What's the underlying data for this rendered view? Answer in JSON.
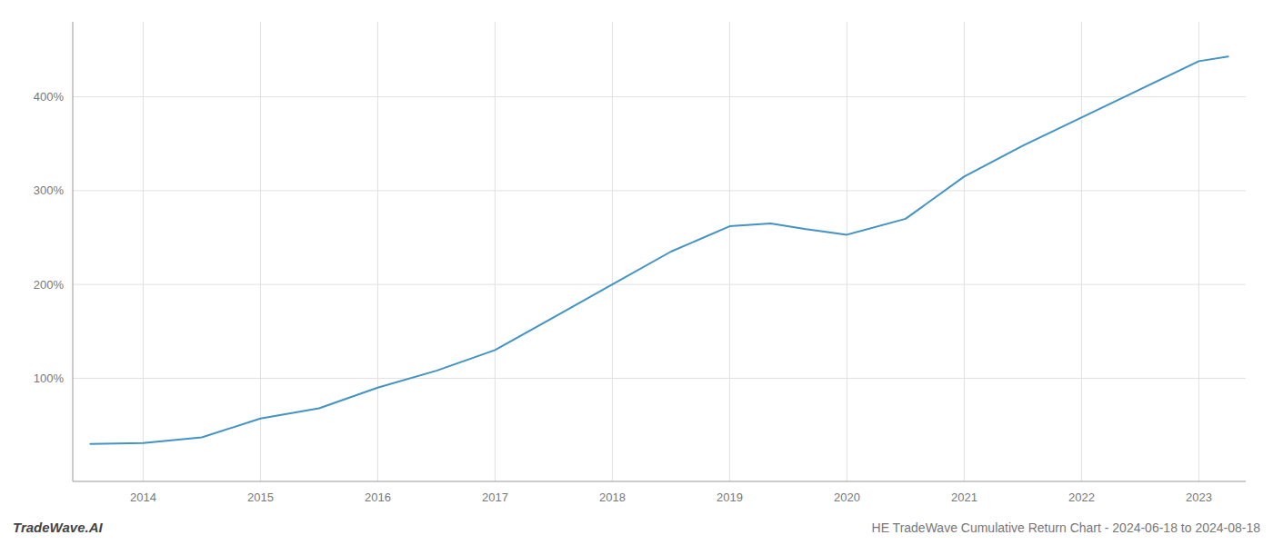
{
  "chart_data": {
    "type": "line",
    "title": "HE TradeWave Cumulative Return Chart - 2024-06-18 to 2024-08-18",
    "annotations": [
      "TradeWave.AI"
    ],
    "x": [
      2013.55,
      2014.0,
      2014.5,
      2015.0,
      2015.5,
      2016.0,
      2016.5,
      2017.0,
      2017.5,
      2018.0,
      2018.5,
      2019.0,
      2019.35,
      2019.65,
      2020.0,
      2020.5,
      2021.0,
      2021.5,
      2022.0,
      2022.5,
      2023.0,
      2023.25
    ],
    "values": [
      30,
      31,
      37,
      57,
      68,
      90,
      108,
      130,
      165,
      200,
      235,
      262,
      265,
      259,
      253,
      270,
      315,
      348,
      378,
      408,
      438,
      443
    ],
    "color": "#4393c3",
    "xlim": [
      2013.4,
      2023.4
    ],
    "ylim": [
      -10,
      480
    ],
    "xticks": [
      2014,
      2015,
      2016,
      2017,
      2018,
      2019,
      2020,
      2021,
      2022,
      2023
    ],
    "yticks": [
      {
        "value": 100,
        "label": "100%"
      },
      {
        "value": 200,
        "label": "200%"
      },
      {
        "value": 300,
        "label": "300%"
      },
      {
        "value": 400,
        "label": "400%"
      }
    ],
    "grid": true
  }
}
